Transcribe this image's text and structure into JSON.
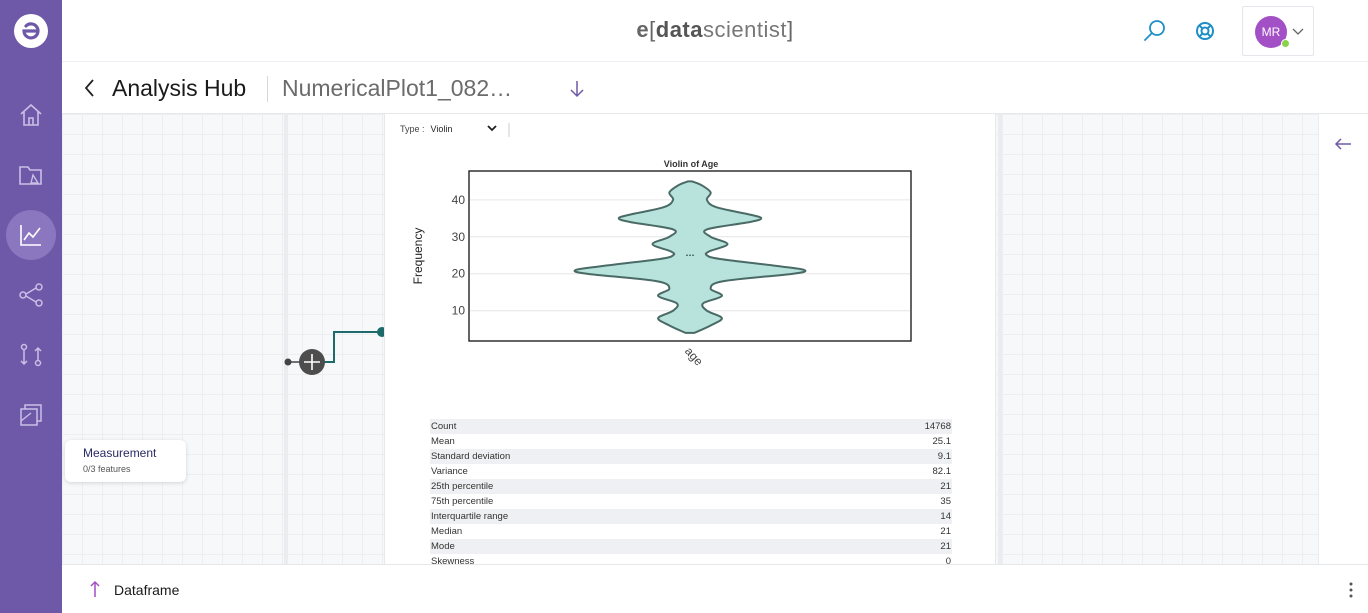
{
  "header": {
    "brand": {
      "prefix": "e",
      "open": "[",
      "bold": "data",
      "rest": "scientist",
      "close": "]"
    },
    "user_initials": "MR",
    "accent": "#6e58a8",
    "icon_color": "#1f8fc7"
  },
  "sidebar": {
    "items": [
      {
        "name": "home-icon"
      },
      {
        "name": "project-folder-icon"
      },
      {
        "name": "analysis-chart-icon",
        "active": true
      },
      {
        "name": "workflow-share-icon"
      },
      {
        "name": "compare-swap-icon"
      },
      {
        "name": "datasets-stack-icon"
      }
    ]
  },
  "subheader": {
    "back_icon": "chevron-left-icon",
    "title": "Analysis Hub",
    "plot_name": "NumericalPlot1_082…",
    "download_icon": "arrow-down-icon"
  },
  "node": {
    "title": "Measurement",
    "subtitle": "0/3 features"
  },
  "plot_panel": {
    "type_label": "Type :",
    "type_value": "Violin"
  },
  "chart_data": {
    "type": "violin",
    "title": "Violin of Age",
    "ylabel": "Frequency",
    "xlabel": "age",
    "ylim": [
      1.8,
      47.8
    ],
    "yticks": [
      10,
      20,
      30,
      40
    ],
    "fill": "#b7e3dc",
    "stroke": "#4a6a66",
    "density": [
      [
        4,
        0.12
      ],
      [
        6,
        0.55
      ],
      [
        8,
        0.85
      ],
      [
        10,
        0.45
      ],
      [
        12,
        0.35
      ],
      [
        14,
        0.85
      ],
      [
        16,
        0.55
      ],
      [
        18,
        0.9
      ],
      [
        20,
        2.75
      ],
      [
        21,
        3.05
      ],
      [
        22,
        2.4
      ],
      [
        24,
        0.8
      ],
      [
        25,
        0.45
      ],
      [
        26,
        0.5
      ],
      [
        28,
        1.0
      ],
      [
        30,
        0.55
      ],
      [
        32,
        0.45
      ],
      [
        34,
        1.6
      ],
      [
        35,
        1.9
      ],
      [
        36,
        1.6
      ],
      [
        38,
        0.7
      ],
      [
        40,
        0.45
      ],
      [
        42,
        0.55
      ],
      [
        44,
        0.3
      ],
      [
        45,
        0.05
      ]
    ]
  },
  "stats": [
    {
      "label": "Count",
      "value": "14768"
    },
    {
      "label": "Mean",
      "value": "25.1"
    },
    {
      "label": "Standard deviation",
      "value": "9.1"
    },
    {
      "label": "Variance",
      "value": "82.1"
    },
    {
      "label": "25th percentile",
      "value": "21"
    },
    {
      "label": "75th percentile",
      "value": "35"
    },
    {
      "label": "Interquartile range",
      "value": "14"
    },
    {
      "label": "Median",
      "value": "21"
    },
    {
      "label": "Mode",
      "value": "21"
    },
    {
      "label": "Skewness",
      "value": "0"
    }
  ],
  "bottom_bar": {
    "label": "Dataframe"
  }
}
